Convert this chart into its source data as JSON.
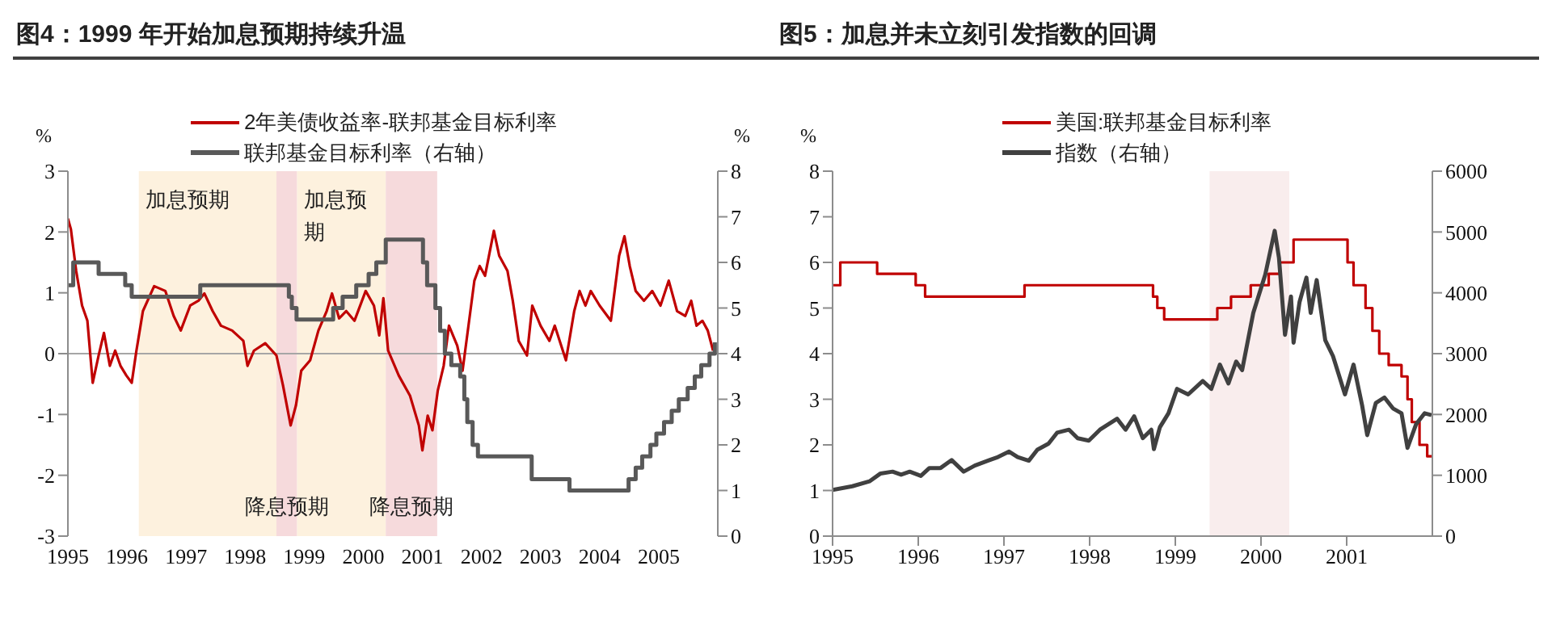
{
  "chart_data": [
    {
      "type": "line",
      "title": "图4：1999 年开始加息预期持续升温",
      "ylabel": "%",
      "y2label": "%",
      "xlim": [
        1995,
        2006
      ],
      "xticks": [
        1995,
        1996,
        1997,
        1998,
        1999,
        2000,
        2001,
        2002,
        2003,
        2004,
        2005
      ],
      "ylim": [
        -3,
        3
      ],
      "yticks": [
        -3,
        -2,
        -1,
        0,
        1,
        2,
        3
      ],
      "y2lim": [
        0,
        8
      ],
      "y2ticks": [
        0,
        1,
        2,
        3,
        4,
        5,
        6,
        7,
        8
      ],
      "legend": "top",
      "bands": [
        {
          "axis": "x",
          "from": 1996.2,
          "to": 1998.53,
          "label": "加息预期",
          "color": "#fdf1de"
        },
        {
          "axis": "x",
          "from": 1998.53,
          "to": 1998.88,
          "label": "降息预期",
          "color": "#f6dadc"
        },
        {
          "axis": "x",
          "from": 1998.88,
          "to": 2000.38,
          "label": "加息预期",
          "color": "#fdf1de"
        },
        {
          "axis": "x",
          "from": 2000.38,
          "to": 2001.25,
          "label": "降息预期",
          "color": "#f6dadc"
        }
      ],
      "ref_lines": [
        {
          "axis": "y",
          "value": 0,
          "color": "#a6a6a6"
        }
      ],
      "series": [
        {
          "name": "2年美债收益率-联邦基金目标利率",
          "type": "line",
          "color": "#c00000",
          "x": [
            1995.0,
            1995.05,
            1995.14,
            1995.24,
            1995.33,
            1995.42,
            1995.52,
            1995.61,
            1995.71,
            1995.8,
            1995.89,
            1995.99,
            1996.08,
            1996.16,
            1996.27,
            1996.46,
            1996.65,
            1996.79,
            1996.91,
            1997.07,
            1997.21,
            1997.31,
            1997.45,
            1997.59,
            1997.78,
            1997.97,
            1998.04,
            1998.15,
            1998.34,
            1998.53,
            1998.64,
            1998.77,
            1998.86,
            1998.95,
            1999.1,
            1999.24,
            1999.38,
            1999.47,
            1999.59,
            1999.71,
            1999.85,
            2000.04,
            2000.18,
            2000.27,
            2000.34,
            2000.42,
            2000.6,
            2000.79,
            2000.94,
            2001.0,
            2001.09,
            2001.17,
            2001.26,
            2001.36,
            2001.45,
            2001.59,
            2001.68,
            2001.78,
            2001.88,
            2001.97,
            2002.06,
            2002.21,
            2002.3,
            2002.44,
            2002.53,
            2002.63,
            2002.77,
            2002.86,
            2003.0,
            2003.15,
            2003.24,
            2003.43,
            2003.57,
            2003.66,
            2003.76,
            2003.85,
            2004.0,
            2004.19,
            2004.33,
            2004.42,
            2004.51,
            2004.61,
            2004.75,
            2004.89,
            2005.03,
            2005.17,
            2005.31,
            2005.45,
            2005.55,
            2005.64,
            2005.74,
            2005.83,
            2005.92
          ],
          "values": [
            2.22,
            2.05,
            1.36,
            0.79,
            0.54,
            -0.48,
            -0.03,
            0.34,
            -0.2,
            0.05,
            -0.2,
            -0.36,
            -0.48,
            0.05,
            0.7,
            1.11,
            1.03,
            0.62,
            0.38,
            0.79,
            0.87,
            0.99,
            0.7,
            0.46,
            0.38,
            0.21,
            -0.2,
            0.05,
            0.17,
            -0.03,
            -0.52,
            -1.18,
            -0.85,
            -0.28,
            -0.11,
            0.38,
            0.7,
            0.99,
            0.58,
            0.7,
            0.54,
            1.03,
            0.79,
            0.3,
            0.91,
            0.05,
            -0.36,
            -0.69,
            -1.18,
            -1.59,
            -1.02,
            -1.26,
            -0.61,
            -0.2,
            0.46,
            0.13,
            -0.28,
            0.46,
            1.2,
            1.44,
            1.28,
            2.02,
            1.61,
            1.36,
            0.87,
            0.21,
            -0.03,
            0.79,
            0.46,
            0.21,
            0.46,
            -0.11,
            0.7,
            1.03,
            0.79,
            1.03,
            0.79,
            0.54,
            1.61,
            1.93,
            1.44,
            1.03,
            0.87,
            1.03,
            0.79,
            1.2,
            0.7,
            0.62,
            0.87,
            0.46,
            0.54,
            0.38,
            0.05
          ]
        },
        {
          "name": "联邦基金目标利率（右轴）",
          "type": "step",
          "axis": "y2",
          "color": "#595959",
          "x": [
            1995.0,
            1995.09,
            1995.52,
            1995.97,
            1996.08,
            1997.24,
            1998.74,
            1998.79,
            1998.87,
            1999.49,
            1999.65,
            1999.88,
            2000.09,
            2000.22,
            2000.38,
            2001.01,
            2001.08,
            2001.22,
            2001.3,
            2001.38,
            2001.49,
            2001.64,
            2001.71,
            2001.76,
            2001.85,
            2001.94,
            2002.85,
            2003.49,
            2004.49,
            2004.61,
            2004.72,
            2004.86,
            2004.96,
            2005.09,
            2005.22,
            2005.34,
            2005.49,
            2005.61,
            2005.72,
            2005.86,
            2005.95
          ],
          "values": [
            5.5,
            6.0,
            5.75,
            5.5,
            5.25,
            5.5,
            5.25,
            5.0,
            4.75,
            5.0,
            5.25,
            5.5,
            5.75,
            6.0,
            6.5,
            6.0,
            5.5,
            5.0,
            4.5,
            4.0,
            3.75,
            3.5,
            3.0,
            2.5,
            2.0,
            1.75,
            1.25,
            1.0,
            1.25,
            1.5,
            1.75,
            2.0,
            2.25,
            2.5,
            2.75,
            3.0,
            3.25,
            3.5,
            3.75,
            4.0,
            4.25
          ]
        }
      ]
    },
    {
      "type": "line",
      "title": "图5：加息并未立刻引发指数的回调",
      "ylabel": "%",
      "xlim": [
        1995,
        2002
      ],
      "xticks": [
        1995,
        1996,
        1997,
        1998,
        1999,
        2000,
        2001
      ],
      "ylim": [
        0,
        8
      ],
      "yticks": [
        0,
        1,
        2,
        3,
        4,
        5,
        6,
        7,
        8
      ],
      "y2lim": [
        0,
        6000
      ],
      "y2ticks": [
        0,
        1000,
        2000,
        3000,
        4000,
        5000,
        6000
      ],
      "legend": "top",
      "bands": [
        {
          "axis": "x",
          "from": 1999.4,
          "to": 2000.33,
          "color": "#f9eded"
        }
      ],
      "series": [
        {
          "name": "美国:联邦基金目标利率",
          "type": "step",
          "color": "#c00000",
          "x": [
            1995.0,
            1995.09,
            1995.52,
            1995.97,
            1996.08,
            1997.24,
            1998.74,
            1998.79,
            1998.87,
            1999.49,
            1999.65,
            1999.88,
            2000.09,
            2000.22,
            2000.38,
            2001.01,
            2001.08,
            2001.22,
            2001.3,
            2001.38,
            2001.49,
            2001.64,
            2001.71,
            2001.76,
            2001.85,
            2001.94,
            2002.0
          ],
          "values": [
            5.5,
            6.0,
            5.75,
            5.5,
            5.25,
            5.5,
            5.25,
            5.0,
            4.75,
            5.0,
            5.25,
            5.5,
            5.75,
            6.0,
            6.5,
            6.0,
            5.5,
            5.0,
            4.5,
            4.0,
            3.75,
            3.5,
            3.0,
            2.5,
            2.0,
            1.75,
            1.75
          ]
        },
        {
          "name": "指数（右轴）",
          "type": "line",
          "axis": "y2",
          "color": "#404040",
          "x": [
            1995.0,
            1995.23,
            1995.43,
            1995.56,
            1995.7,
            1995.8,
            1995.9,
            1996.03,
            1996.13,
            1996.26,
            1996.39,
            1996.53,
            1996.66,
            1996.83,
            1996.93,
            1997.06,
            1997.16,
            1997.29,
            1997.39,
            1997.52,
            1997.62,
            1997.76,
            1997.86,
            1997.99,
            1998.12,
            1998.22,
            1998.32,
            1998.42,
            1998.52,
            1998.62,
            1998.72,
            1998.75,
            1998.82,
            1998.92,
            1999.02,
            1999.15,
            1999.32,
            1999.42,
            1999.52,
            1999.62,
            1999.71,
            1999.78,
            1999.91,
            2000.05,
            2000.16,
            2000.21,
            2000.28,
            2000.35,
            2000.38,
            2000.45,
            2000.53,
            2000.58,
            2000.65,
            2000.75,
            2000.84,
            2000.98,
            2001.08,
            2001.18,
            2001.24,
            2001.34,
            2001.44,
            2001.54,
            2001.64,
            2001.71,
            2001.81,
            2001.91,
            2001.99
          ],
          "values": [
            760,
            820,
            900,
            1030,
            1060,
            1010,
            1060,
            990,
            1120,
            1120,
            1250,
            1060,
            1160,
            1250,
            1300,
            1390,
            1300,
            1240,
            1420,
            1520,
            1700,
            1750,
            1610,
            1570,
            1750,
            1840,
            1930,
            1750,
            1970,
            1610,
            1750,
            1430,
            1790,
            2020,
            2420,
            2330,
            2550,
            2420,
            2820,
            2510,
            2870,
            2730,
            3670,
            4300,
            5020,
            4570,
            3310,
            3940,
            3180,
            3850,
            4250,
            3670,
            4210,
            3220,
            2960,
            2330,
            2820,
            2150,
            1660,
            2190,
            2280,
            2100,
            2020,
            1450,
            1840,
            2020,
            1990
          ]
        }
      ]
    }
  ]
}
